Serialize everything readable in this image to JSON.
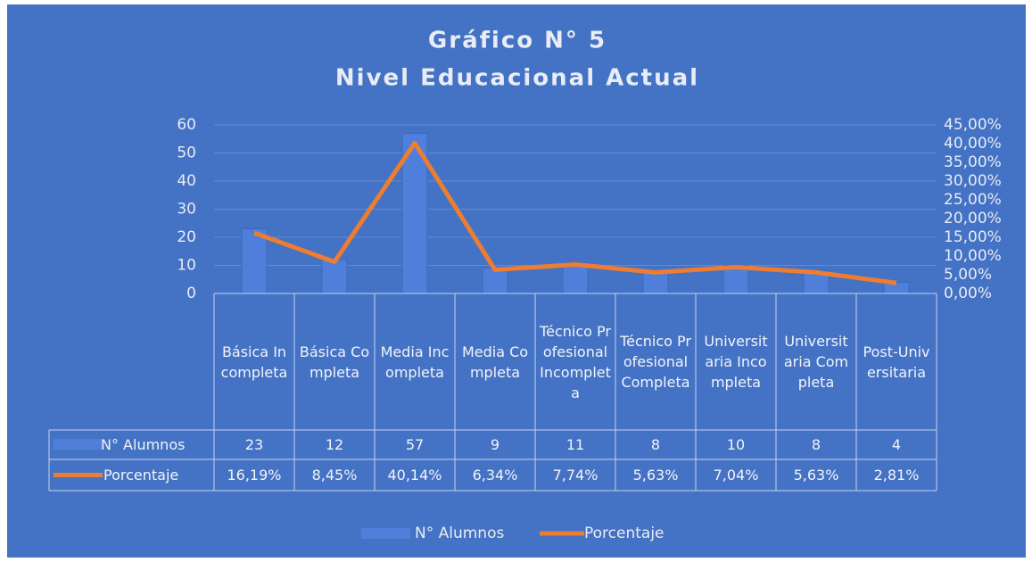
{
  "chart_data": {
    "type": "bar",
    "title": "Gráfico N° 5",
    "subtitle": "Nivel Educacional Actual",
    "categories": [
      "Básica Incompleta",
      "Básica Completa",
      "Media Incompleta",
      "Media Completa",
      "Técnico Profesional Incompleta",
      "Técnico Profesional Completa",
      "Universitaria Incompleta",
      "Universitaria Completa",
      "Post-Universitaria"
    ],
    "series": [
      {
        "name": "N° Alumnos",
        "type": "bar",
        "color": "#4f7fdb",
        "values": [
          23,
          12,
          57,
          9,
          11,
          8,
          10,
          8,
          4
        ]
      },
      {
        "name": "Porcentaje",
        "type": "line",
        "axis": "y2",
        "color": "#ed7d31",
        "values": [
          16.19,
          8.45,
          40.14,
          6.34,
          7.74,
          5.63,
          7.04,
          5.63,
          2.81
        ],
        "value_labels": [
          "16,19%",
          "8,45%",
          "40,14%",
          "6,34%",
          "7,74%",
          "5,63%",
          "7,04%",
          "5,63%",
          "2,81%"
        ]
      }
    ],
    "ylim": [
      0,
      60
    ],
    "yticks": [
      0,
      10,
      20,
      30,
      40,
      50,
      60
    ],
    "y2lim": [
      0,
      45
    ],
    "y2ticks": [
      {
        "value": 0,
        "label": "0,00%"
      },
      {
        "value": 5,
        "label": "5,00%"
      },
      {
        "value": 10,
        "label": "10,00%"
      },
      {
        "value": 15,
        "label": "15,00%"
      },
      {
        "value": 20,
        "label": "20,00%"
      },
      {
        "value": 25,
        "label": "25,00%"
      },
      {
        "value": 30,
        "label": "30,00%"
      },
      {
        "value": 35,
        "label": "35,00%"
      },
      {
        "value": 40,
        "label": "40,00%"
      },
      {
        "value": 45,
        "label": "45,00%"
      }
    ],
    "grid": true,
    "legend": "bottom",
    "background": "#4472c4"
  }
}
